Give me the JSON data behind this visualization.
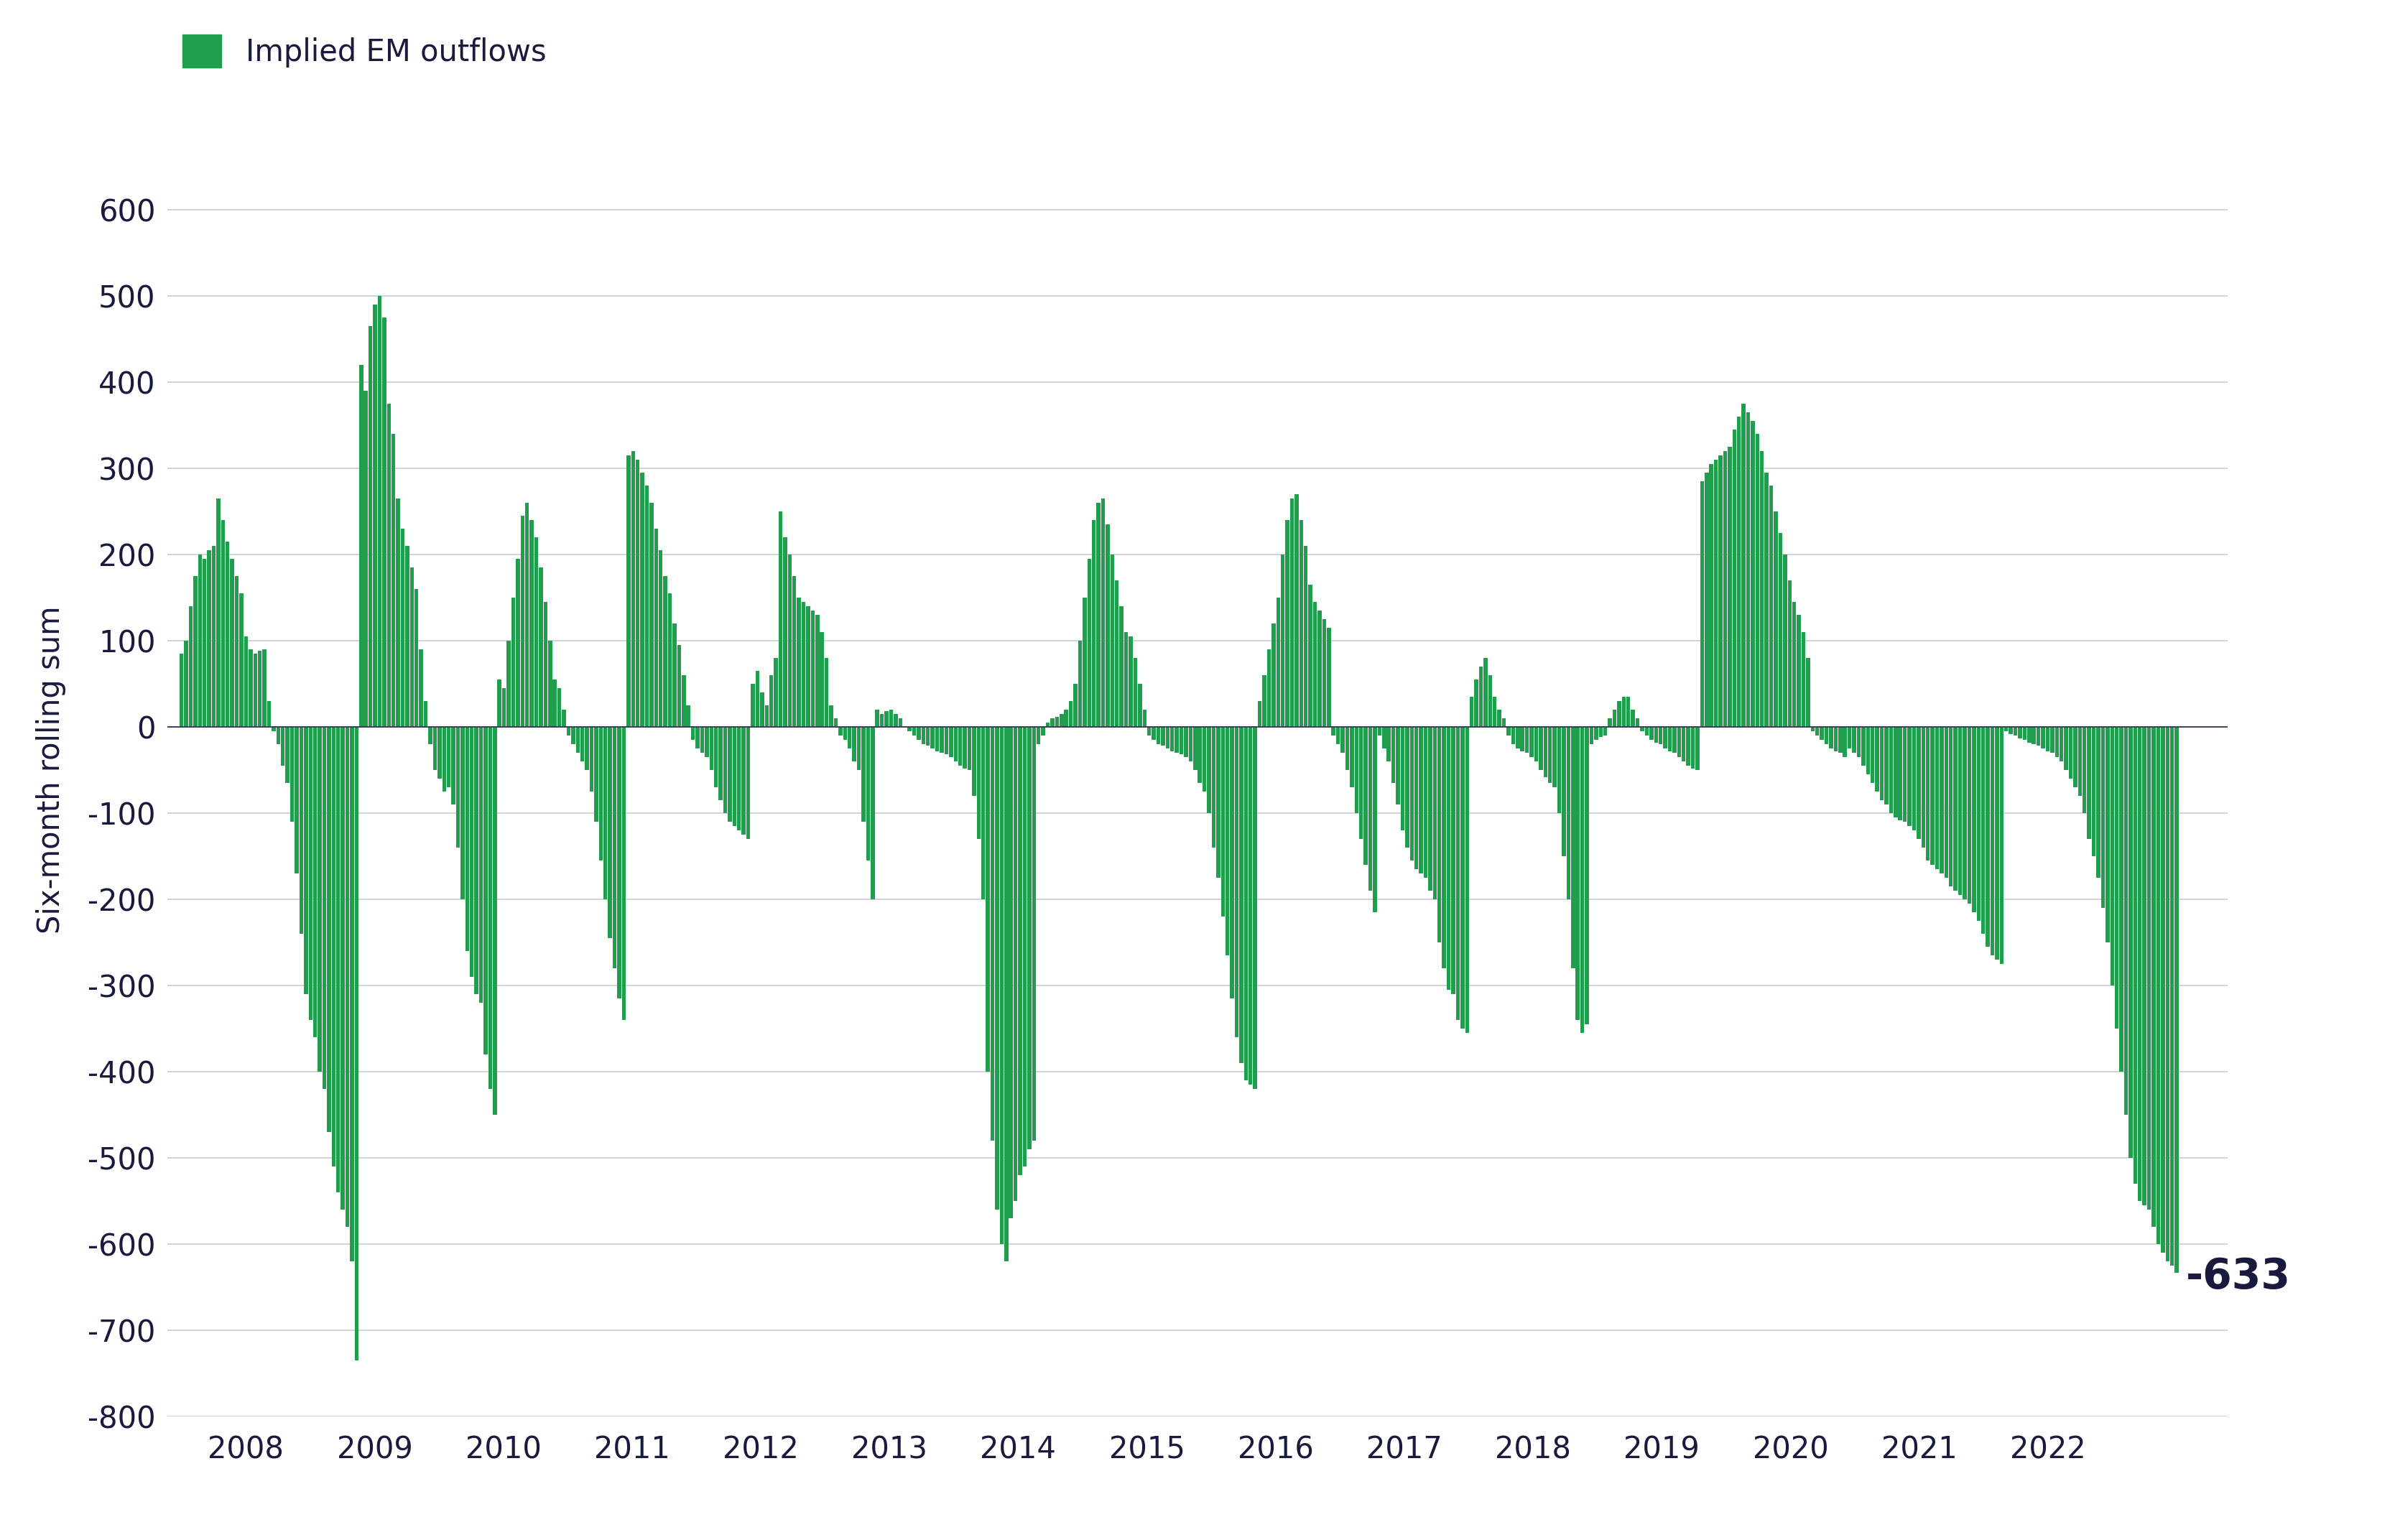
{
  "legend_label": "Implied EM outflows",
  "ylabel": "Six-month rolling sum",
  "bar_color": "#1f9e4e",
  "background_color": "#ffffff",
  "grid_color": "#c8ccd4",
  "ylim_min": -800,
  "ylim_max": 700,
  "yticks": [
    -800,
    -700,
    -600,
    -500,
    -400,
    -300,
    -200,
    -100,
    0,
    100,
    200,
    300,
    400,
    500,
    600
  ],
  "last_value": -633,
  "last_value_color": "#1a1a3e",
  "xlabel_years": [
    2008,
    2009,
    2010,
    2011,
    2012,
    2013,
    2014,
    2015,
    2016,
    2017,
    2018,
    2019,
    2020,
    2021,
    2022
  ],
  "values": [
    85,
    100,
    140,
    175,
    200,
    195,
    205,
    210,
    265,
    240,
    215,
    195,
    175,
    155,
    105,
    90,
    85,
    88,
    90,
    30,
    -5,
    -20,
    -45,
    -65,
    -110,
    -170,
    -240,
    -310,
    -340,
    -360,
    -400,
    -420,
    -470,
    -510,
    -540,
    -560,
    -580,
    -620,
    -735,
    420,
    390,
    465,
    490,
    500,
    475,
    375,
    340,
    265,
    230,
    210,
    185,
    160,
    90,
    30,
    -20,
    -50,
    -60,
    -75,
    -70,
    -90,
    -140,
    -200,
    -260,
    -290,
    -310,
    -320,
    -380,
    -420,
    -450,
    55,
    45,
    100,
    150,
    195,
    245,
    260,
    240,
    220,
    185,
    145,
    100,
    55,
    45,
    20,
    -10,
    -20,
    -30,
    -40,
    -50,
    -75,
    -110,
    -155,
    -200,
    -245,
    -280,
    -315,
    -340,
    315,
    320,
    310,
    295,
    280,
    260,
    230,
    205,
    175,
    155,
    120,
    95,
    60,
    25,
    -15,
    -25,
    -30,
    -35,
    -50,
    -70,
    -85,
    -100,
    -110,
    -115,
    -120,
    -125,
    -130,
    50,
    65,
    40,
    25,
    60,
    80,
    250,
    220,
    200,
    175,
    150,
    145,
    140,
    135,
    130,
    110,
    80,
    25,
    10,
    -10,
    -15,
    -25,
    -40,
    -50,
    -110,
    -155,
    -200,
    20,
    15,
    18,
    20,
    15,
    10,
    0,
    -5,
    -10,
    -15,
    -20,
    -22,
    -25,
    -28,
    -30,
    -32,
    -35,
    -40,
    -45,
    -48,
    -50,
    -80,
    -130,
    -200,
    -400,
    -480,
    -560,
    -600,
    -620,
    -570,
    -550,
    -520,
    -510,
    -490,
    -480,
    -20,
    -10,
    5,
    10,
    12,
    15,
    20,
    30,
    50,
    100,
    150,
    195,
    240,
    260,
    265,
    235,
    200,
    170,
    140,
    110,
    105,
    80,
    50,
    20,
    -10,
    -15,
    -20,
    -22,
    -25,
    -28,
    -30,
    -32,
    -35,
    -40,
    -50,
    -65,
    -75,
    -100,
    -140,
    -175,
    -220,
    -265,
    -315,
    -360,
    -390,
    -410,
    -415,
    -420,
    30,
    60,
    90,
    120,
    150,
    200,
    240,
    265,
    270,
    240,
    210,
    165,
    145,
    135,
    125,
    115,
    -10,
    -20,
    -30,
    -50,
    -70,
    -100,
    -130,
    -160,
    -190,
    -215,
    -10,
    -25,
    -40,
    -65,
    -90,
    -120,
    -140,
    -155,
    -165,
    -170,
    -175,
    -190,
    -200,
    -250,
    -280,
    -305,
    -310,
    -340,
    -350,
    -355,
    35,
    55,
    70,
    80,
    60,
    35,
    20,
    10,
    -10,
    -20,
    -25,
    -28,
    -30,
    -35,
    -40,
    -50,
    -58,
    -65,
    -70,
    -100,
    -150,
    -200,
    -280,
    -340,
    -355,
    -345,
    -20,
    -15,
    -12,
    -10,
    10,
    20,
    30,
    35,
    35,
    20,
    10,
    -5,
    -10,
    -15,
    -18,
    -20,
    -25,
    -28,
    -30,
    -35,
    -40,
    -45,
    -48,
    -50,
    285,
    295,
    305,
    310,
    315,
    320,
    325,
    345,
    360,
    375,
    365,
    355,
    340,
    320,
    295,
    280,
    250,
    225,
    200,
    170,
    145,
    130,
    110,
    80,
    -5,
    -10,
    -15,
    -20,
    -25,
    -28,
    -30,
    -35,
    -25,
    -30,
    -35,
    -45,
    -55,
    -65,
    -75,
    -85,
    -90,
    -100,
    -105,
    -108,
    -110,
    -115,
    -120,
    -130,
    -140,
    -155,
    -160,
    -165,
    -170,
    -175,
    -185,
    -190,
    -195,
    -200,
    -205,
    -215,
    -225,
    -240,
    -255,
    -265,
    -270,
    -275,
    -5,
    -8,
    -10,
    -13,
    -15,
    -18,
    -20,
    -22,
    -25,
    -28,
    -30,
    -35,
    -40,
    -50,
    -60,
    -70,
    -80,
    -100,
    -130,
    -150,
    -175,
    -210,
    -250,
    -300,
    -350,
    -400,
    -450,
    -500,
    -530,
    -550,
    -555,
    -560,
    -580,
    -600,
    -610,
    -620,
    -625,
    -633
  ]
}
